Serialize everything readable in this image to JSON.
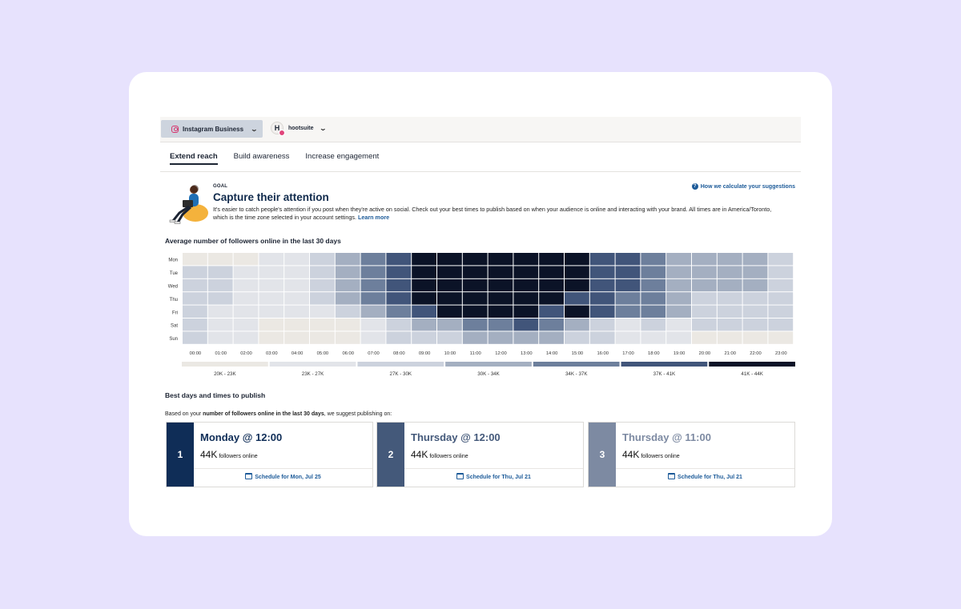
{
  "header": {
    "account_label": "Instagram Business",
    "profile_initial": "H",
    "profile_name": "hootsuite"
  },
  "tabs": [
    {
      "label": "Extend reach",
      "active": true
    },
    {
      "label": "Build awareness",
      "active": false
    },
    {
      "label": "Increase engagement",
      "active": false
    }
  ],
  "goal": {
    "label": "GOAL",
    "title": "Capture their attention",
    "description": "It's easier to catch people's attention if you post when they're active on social. Check out your best times to publish based on when your audience is online and interacting with your brand. All times are in America/Toronto, which is the time zone selected in your account settings.",
    "learn_more": "Learn more",
    "help_link": "How we calculate your suggestions"
  },
  "heatmap": {
    "title": "Average number of followers online in the last 30 days",
    "days": [
      "Mon",
      "Tue",
      "Wed",
      "Thu",
      "Fri",
      "Sat",
      "Sun"
    ],
    "hours": [
      "00:00",
      "01:00",
      "02:00",
      "03:00",
      "04:00",
      "05:00",
      "06:00",
      "07:00",
      "08:00",
      "09:00",
      "10:00",
      "11:00",
      "12:00",
      "13:00",
      "14:00",
      "15:00",
      "16:00",
      "17:00",
      "18:00",
      "19:00",
      "20:00",
      "21:00",
      "22:00",
      "23:00"
    ],
    "levels": [
      [
        0,
        0,
        0,
        1,
        1,
        2,
        3,
        4,
        5,
        6,
        6,
        6,
        6,
        6,
        6,
        6,
        5,
        5,
        4,
        3,
        3,
        3,
        3,
        2
      ],
      [
        2,
        2,
        1,
        1,
        1,
        2,
        3,
        4,
        5,
        6,
        6,
        6,
        6,
        6,
        6,
        6,
        5,
        5,
        4,
        3,
        3,
        3,
        3,
        2
      ],
      [
        2,
        2,
        1,
        1,
        1,
        2,
        3,
        4,
        5,
        6,
        6,
        6,
        6,
        6,
        6,
        6,
        5,
        5,
        4,
        3,
        3,
        3,
        3,
        2
      ],
      [
        2,
        2,
        1,
        1,
        1,
        2,
        3,
        4,
        5,
        6,
        6,
        6,
        6,
        6,
        6,
        5,
        5,
        4,
        4,
        3,
        2,
        2,
        2,
        2
      ],
      [
        2,
        1,
        1,
        1,
        1,
        1,
        2,
        3,
        4,
        5,
        6,
        6,
        6,
        6,
        5,
        6,
        5,
        4,
        4,
        3,
        2,
        2,
        2,
        2
      ],
      [
        2,
        1,
        1,
        0,
        0,
        0,
        0,
        1,
        2,
        3,
        3,
        4,
        4,
        5,
        4,
        3,
        2,
        1,
        2,
        1,
        2,
        2,
        2,
        2
      ],
      [
        2,
        1,
        1,
        0,
        0,
        0,
        0,
        1,
        2,
        2,
        2,
        3,
        3,
        3,
        3,
        2,
        2,
        1,
        1,
        1,
        0,
        0,
        0,
        0
      ]
    ],
    "legend": [
      "20K - 23K",
      "23K - 27K",
      "27K - 30K",
      "30K - 34K",
      "34K - 37K",
      "37K - 41K",
      "41K - 44K"
    ],
    "colors": [
      "#ebe8e3",
      "#e2e4e9",
      "#ccd2dd",
      "#a4afc1",
      "#6d7f9c",
      "#41557a",
      "#0b1327"
    ]
  },
  "best": {
    "title": "Best days and times to publish",
    "desc_prefix": "Based on your ",
    "desc_bold": "number of followers online in the last 30 days",
    "desc_suffix": ", we suggest publishing on:",
    "suggestions": [
      {
        "rank": "1",
        "title": "Monday @ 12:00",
        "count": "44K",
        "count_label": "followers online",
        "link": "Schedule for Mon, Jul 25",
        "color": "#0f2d57",
        "title_color": "#0f2d57"
      },
      {
        "rank": "2",
        "title": "Thursday @ 12:00",
        "count": "44K",
        "count_label": "followers online",
        "link": "Schedule for Thu, Jul 21",
        "color": "#44597a",
        "title_color": "#44597a"
      },
      {
        "rank": "3",
        "title": "Thursday @ 11:00",
        "count": "44K",
        "count_label": "followers online",
        "link": "Schedule for Thu, Jul 21",
        "color": "#7d8aa2",
        "title_color": "#7d8aa2"
      }
    ]
  }
}
